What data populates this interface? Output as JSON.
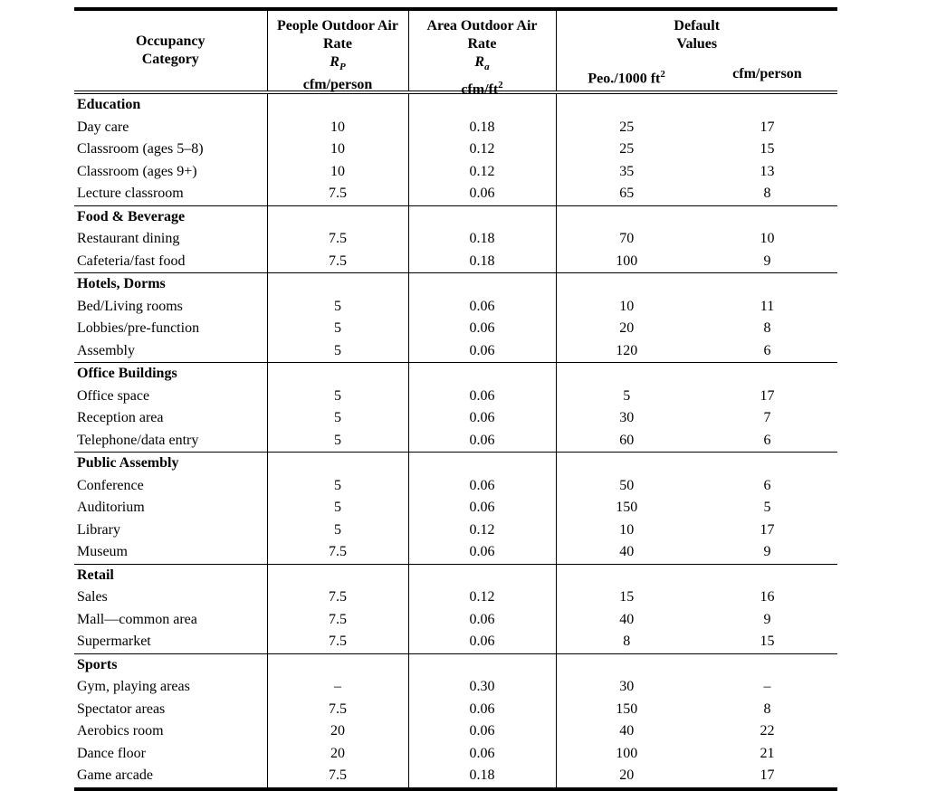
{
  "table": {
    "header": {
      "occupancy": {
        "line1": "Occupancy",
        "line2": "Category"
      },
      "people": {
        "line1": "People Outdoor Air",
        "line2": "Rate",
        "symbol_base": "R",
        "symbol_sub": "P",
        "units": "cfm/person"
      },
      "area": {
        "line1": "Area Outdoor Air",
        "line2": "Rate",
        "symbol_base": "R",
        "symbol_sub": "a",
        "units_pre": "cfm/ft",
        "units_sup": "2"
      },
      "defaults": {
        "line1": "Default",
        "line2": "Values",
        "units_left_pre": "Peo./1000 ft",
        "units_left_sup": "2",
        "units_right": "cfm/person"
      }
    },
    "sections": [
      {
        "name": "Education",
        "rows": [
          {
            "category": "Day care",
            "rp": "10",
            "ra": "0.18",
            "peo": "25",
            "cfm": "17"
          },
          {
            "category": "Classroom (ages 5–8)",
            "rp": "10",
            "ra": "0.12",
            "peo": "25",
            "cfm": "15"
          },
          {
            "category": "Classroom (ages 9+)",
            "rp": "10",
            "ra": "0.12",
            "peo": "35",
            "cfm": "13"
          },
          {
            "category": "Lecture classroom",
            "rp": "7.5",
            "ra": "0.06",
            "peo": "65",
            "cfm": "8"
          }
        ]
      },
      {
        "name": "Food & Beverage",
        "rows": [
          {
            "category": "Restaurant dining",
            "rp": "7.5",
            "ra": "0.18",
            "peo": "70",
            "cfm": "10"
          },
          {
            "category": "Cafeteria/fast food",
            "rp": "7.5",
            "ra": "0.18",
            "peo": "100",
            "cfm": "9"
          }
        ]
      },
      {
        "name": "Hotels, Dorms",
        "rows": [
          {
            "category": "Bed/Living rooms",
            "rp": "5",
            "ra": "0.06",
            "peo": "10",
            "cfm": "11"
          },
          {
            "category": "Lobbies/pre-function",
            "rp": "5",
            "ra": "0.06",
            "peo": "20",
            "cfm": "8"
          },
          {
            "category": "Assembly",
            "rp": "5",
            "ra": "0.06",
            "peo": "120",
            "cfm": "6"
          }
        ]
      },
      {
        "name": "Office Buildings",
        "rows": [
          {
            "category": "Office space",
            "rp": "5",
            "ra": "0.06",
            "peo": "5",
            "cfm": "17"
          },
          {
            "category": "Reception area",
            "rp": "5",
            "ra": "0.06",
            "peo": "30",
            "cfm": "7"
          },
          {
            "category": "Telephone/data entry",
            "rp": "5",
            "ra": "0.06",
            "peo": "60",
            "cfm": "6"
          }
        ]
      },
      {
        "name": "Public Assembly",
        "rows": [
          {
            "category": "Conference",
            "rp": "5",
            "ra": "0.06",
            "peo": "50",
            "cfm": "6"
          },
          {
            "category": "Auditorium",
            "rp": "5",
            "ra": "0.06",
            "peo": "150",
            "cfm": "5"
          },
          {
            "category": "Library",
            "rp": "5",
            "ra": "0.12",
            "peo": "10",
            "cfm": "17"
          },
          {
            "category": "Museum",
            "rp": "7.5",
            "ra": "0.06",
            "peo": "40",
            "cfm": "9"
          }
        ]
      },
      {
        "name": "Retail",
        "rows": [
          {
            "category": "Sales",
            "rp": "7.5",
            "ra": "0.12",
            "peo": "15",
            "cfm": "16"
          },
          {
            "category": "Mall—common area",
            "rp": "7.5",
            "ra": "0.06",
            "peo": "40",
            "cfm": "9"
          },
          {
            "category": "Supermarket",
            "rp": "7.5",
            "ra": "0.06",
            "peo": "8",
            "cfm": "15"
          }
        ]
      },
      {
        "name": "Sports",
        "rows": [
          {
            "category": "Gym, playing areas",
            "rp": "–",
            "ra": "0.30",
            "peo": "30",
            "cfm": "–"
          },
          {
            "category": "Spectator areas",
            "rp": "7.5",
            "ra": "0.06",
            "peo": "150",
            "cfm": "8"
          },
          {
            "category": "Aerobics room",
            "rp": "20",
            "ra": "0.06",
            "peo": "40",
            "cfm": "22"
          },
          {
            "category": "Dance floor",
            "rp": "20",
            "ra": "0.06",
            "peo": "100",
            "cfm": "21"
          },
          {
            "category": "Game arcade",
            "rp": "7.5",
            "ra": "0.18",
            "peo": "20",
            "cfm": "17"
          }
        ]
      }
    ]
  }
}
